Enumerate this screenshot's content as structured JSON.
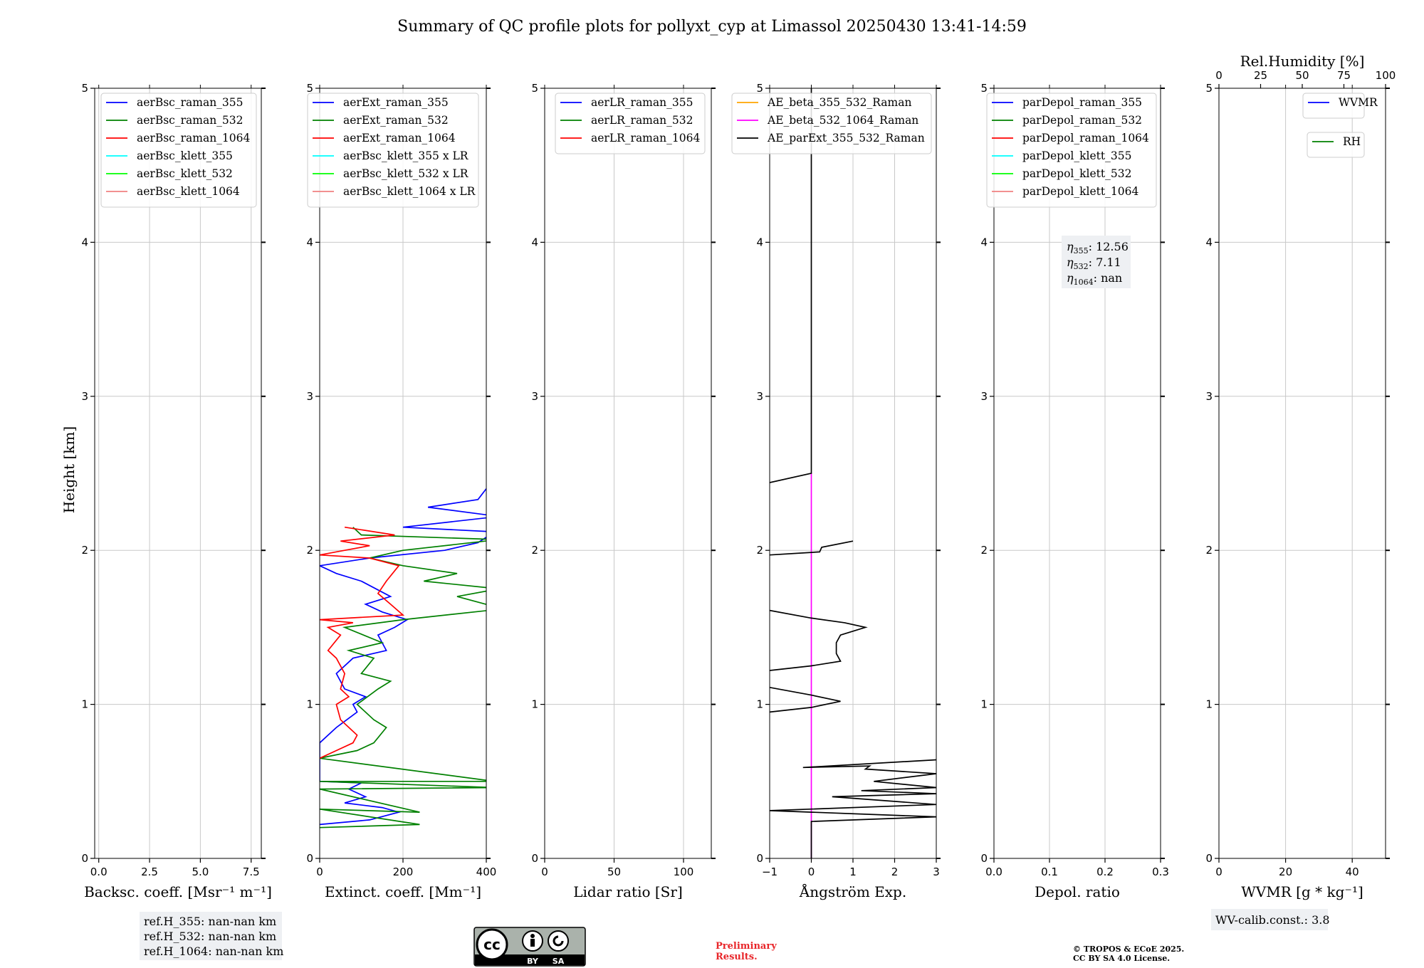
{
  "chart_data": {
    "title": "Summary of QC profile plots for pollyxt_cyp at Limassol 20250430 13:41-14:59",
    "ylabel": "Height [km]",
    "ylim": [
      0,
      5
    ],
    "yticks": [
      "0",
      "1",
      "2",
      "3",
      "4",
      "5"
    ],
    "panels": [
      {
        "id": "bsc",
        "type": "line",
        "xlabel": "Backsc. coeff. [Msr⁻¹ m⁻¹]",
        "xlim": [
          -0.2,
          8.0
        ],
        "xticks": [
          {
            "v": 0,
            "t": "0.0"
          },
          {
            "v": 2.5,
            "t": "2.5"
          },
          {
            "v": 5,
            "t": "5.0"
          },
          {
            "v": 7.5,
            "t": "7.5"
          }
        ],
        "legend": [
          {
            "label": "aerBsc_raman_355",
            "color": "#0000ff"
          },
          {
            "label": "aerBsc_raman_532",
            "color": "#008000"
          },
          {
            "label": "aerBsc_raman_1064",
            "color": "#ff0000"
          },
          {
            "label": "aerBsc_klett_355",
            "color": "#00ffff"
          },
          {
            "label": "aerBsc_klett_532",
            "color": "#00ff00"
          },
          {
            "label": "aerBsc_klett_1064",
            "color": "#f08080"
          }
        ],
        "series": []
      },
      {
        "id": "ext",
        "type": "line",
        "xlabel": "Extinct. coeff. [Mm⁻¹]",
        "xlim": [
          0,
          400
        ],
        "xticks": [
          {
            "v": 0,
            "t": "0"
          },
          {
            "v": 200,
            "t": "200"
          },
          {
            "v": 400,
            "t": "400"
          }
        ],
        "legend": [
          {
            "label": "aerExt_raman_355",
            "color": "#0000ff"
          },
          {
            "label": "aerExt_raman_532",
            "color": "#008000"
          },
          {
            "label": "aerExt_raman_1064",
            "color": "#ff0000"
          },
          {
            "label": "aerBsc_klett_355 x LR",
            "color": "#00ffff"
          },
          {
            "label": "aerBsc_klett_532 x LR",
            "color": "#00ff00"
          },
          {
            "label": "aerBsc_klett_1064 x LR",
            "color": "#f08080"
          }
        ],
        "series": [
          {
            "name": "aerExt_raman_355",
            "color": "#0000ff",
            "points": [
              [
                0,
                0.22
              ],
              [
                120,
                0.25
              ],
              [
                190,
                0.3
              ],
              [
                150,
                0.33
              ],
              [
                60,
                0.36
              ],
              [
                110,
                0.4
              ],
              [
                70,
                0.45
              ],
              [
                100,
                0.49
              ],
              [
                0,
                0.5
              ],
              [
                0,
                0.75
              ],
              [
                40,
                0.85
              ],
              [
                90,
                0.95
              ],
              [
                80,
                1.0
              ],
              [
                110,
                1.05
              ],
              [
                60,
                1.1
              ],
              [
                40,
                1.2
              ],
              [
                80,
                1.3
              ],
              [
                160,
                1.35
              ],
              [
                140,
                1.45
              ],
              [
                180,
                1.5
              ],
              [
                210,
                1.55
              ],
              [
                150,
                1.6
              ],
              [
                110,
                1.65
              ],
              [
                170,
                1.7
              ],
              [
                100,
                1.8
              ],
              [
                40,
                1.85
              ],
              [
                0,
                1.9
              ],
              [
                120,
                1.95
              ],
              [
                300,
                2.0
              ],
              [
                380,
                2.05
              ],
              [
                420,
                2.12
              ],
              [
                200,
                2.15
              ],
              [
                430,
                2.22
              ],
              [
                260,
                2.28
              ],
              [
                380,
                2.33
              ],
              [
                400,
                2.4
              ]
            ]
          },
          {
            "name": "aerExt_raman_532",
            "color": "#008000",
            "points": [
              [
                0,
                0.2
              ],
              [
                240,
                0.22
              ],
              [
                0,
                0.32
              ],
              [
                240,
                0.3
              ],
              [
                0,
                0.45
              ],
              [
                420,
                0.46
              ],
              [
                0,
                0.5
              ],
              [
                420,
                0.5
              ],
              [
                0,
                0.65
              ],
              [
                90,
                0.7
              ],
              [
                130,
                0.75
              ],
              [
                160,
                0.85
              ],
              [
                130,
                0.9
              ],
              [
                90,
                1.0
              ],
              [
                140,
                1.1
              ],
              [
                170,
                1.15
              ],
              [
                100,
                1.2
              ],
              [
                130,
                1.3
              ],
              [
                70,
                1.35
              ],
              [
                150,
                1.4
              ],
              [
                60,
                1.5
              ],
              [
                200,
                1.55
              ],
              [
                440,
                1.62
              ],
              [
                330,
                1.7
              ],
              [
                430,
                1.75
              ],
              [
                250,
                1.8
              ],
              [
                330,
                1.85
              ],
              [
                200,
                1.9
              ],
              [
                120,
                1.95
              ],
              [
                200,
                2.0
              ],
              [
                430,
                2.07
              ],
              [
                100,
                2.1
              ],
              [
                80,
                2.15
              ]
            ]
          },
          {
            "name": "aerExt_raman_1064",
            "color": "#ff0000",
            "points": [
              [
                0,
                0.65
              ],
              [
                40,
                0.7
              ],
              [
                80,
                0.75
              ],
              [
                90,
                0.8
              ],
              [
                50,
                0.9
              ],
              [
                40,
                1.0
              ],
              [
                70,
                1.05
              ],
              [
                50,
                1.1
              ],
              [
                60,
                1.2
              ],
              [
                40,
                1.3
              ],
              [
                20,
                1.35
              ],
              [
                50,
                1.45
              ],
              [
                20,
                1.5
              ],
              [
                80,
                1.53
              ],
              [
                0,
                1.55
              ],
              [
                200,
                1.58
              ],
              [
                170,
                1.65
              ],
              [
                140,
                1.72
              ],
              [
                160,
                1.8
              ],
              [
                190,
                1.9
              ],
              [
                120,
                1.95
              ],
              [
                0,
                1.97
              ],
              [
                60,
                2.0
              ],
              [
                120,
                2.03
              ],
              [
                50,
                2.06
              ],
              [
                180,
                2.1
              ],
              [
                60,
                2.15
              ]
            ]
          }
        ]
      },
      {
        "id": "lr",
        "type": "line",
        "xlabel": "Lidar ratio [Sr]",
        "xlim": [
          0,
          120
        ],
        "xticks": [
          {
            "v": 0,
            "t": "0"
          },
          {
            "v": 50,
            "t": "50"
          },
          {
            "v": 100,
            "t": "100"
          }
        ],
        "legend": [
          {
            "label": "aerLR_raman_355",
            "color": "#0000ff"
          },
          {
            "label": "aerLR_raman_532",
            "color": "#008000"
          },
          {
            "label": "aerLR_raman_1064",
            "color": "#ff0000"
          }
        ],
        "series": []
      },
      {
        "id": "ae",
        "type": "line",
        "xlabel": "Ångström Exp.",
        "xlim": [
          -1,
          3
        ],
        "xticks": [
          {
            "v": -1,
            "t": "−1"
          },
          {
            "v": 0,
            "t": "0"
          },
          {
            "v": 1,
            "t": "1"
          },
          {
            "v": 2,
            "t": "2"
          },
          {
            "v": 3,
            "t": "3"
          }
        ],
        "legend": [
          {
            "label": "AE_beta_355_532_Raman",
            "color": "#ffa500"
          },
          {
            "label": "AE_beta_532_1064_Raman",
            "color": "#ff00ff"
          },
          {
            "label": "AE_parExt_355_532_Raman",
            "color": "#000000"
          }
        ],
        "series": [
          {
            "name": "AE_beta_532_1064_Raman",
            "color": "#ff00ff",
            "points": [
              [
                0,
                0
              ],
              [
                0,
                2.5
              ]
            ]
          },
          {
            "name": "AE_parExt_355_532_Raman",
            "color": "#000000",
            "points": [
              [
                0,
                0
              ],
              [
                0,
                0.24
              ],
              [
                3,
                0.27
              ],
              [
                -1,
                0.31
              ],
              [
                3,
                0.35
              ],
              [
                0.5,
                0.4
              ],
              [
                3,
                0.42
              ],
              [
                1.2,
                0.44
              ],
              [
                3,
                0.46
              ],
              [
                1.5,
                0.5
              ],
              [
                3,
                0.55
              ],
              [
                1.3,
                0.58
              ],
              [
                1.4,
                0.6
              ],
              [
                -0.2,
                0.59
              ],
              [
                3,
                0.64
              ]
            ]
          },
          {
            "name": "AE_parExt_355_532_Raman_b",
            "color": "#000000",
            "points": [
              [
                -1,
                0.95
              ],
              [
                0,
                0.98
              ],
              [
                0.7,
                1.02
              ],
              [
                0,
                1.06
              ],
              [
                -1,
                1.11
              ]
            ]
          },
          {
            "name": "AE_parExt_355_532_Raman_c",
            "color": "#000000",
            "points": [
              [
                -1,
                1.22
              ],
              [
                0,
                1.25
              ],
              [
                0.7,
                1.28
              ],
              [
                0.6,
                1.33
              ],
              [
                0.6,
                1.4
              ],
              [
                0.7,
                1.45
              ],
              [
                1.3,
                1.5
              ],
              [
                0.8,
                1.53
              ],
              [
                0,
                1.56
              ],
              [
                -1,
                1.61
              ]
            ]
          },
          {
            "name": "AE_parExt_355_532_Raman_d",
            "color": "#000000",
            "points": [
              [
                -1,
                1.97
              ],
              [
                0.2,
                1.99
              ],
              [
                0.25,
                2.02
              ],
              [
                1.0,
                2.06
              ]
            ]
          },
          {
            "name": "AE_parExt_355_532_Raman_e",
            "color": "#000000",
            "points": [
              [
                -1,
                2.44
              ],
              [
                0,
                2.5
              ],
              [
                0,
                5
              ]
            ]
          }
        ]
      },
      {
        "id": "depol",
        "type": "line",
        "xlabel": "Depol. ratio",
        "xlim": [
          0,
          0.3
        ],
        "xticks": [
          {
            "v": 0,
            "t": "0.0"
          },
          {
            "v": 0.1,
            "t": "0.1"
          },
          {
            "v": 0.2,
            "t": "0.2"
          },
          {
            "v": 0.3,
            "t": "0.3"
          }
        ],
        "legend": [
          {
            "label": "parDepol_raman_355",
            "color": "#0000ff"
          },
          {
            "label": "parDepol_raman_532",
            "color": "#008000"
          },
          {
            "label": "parDepol_raman_1064",
            "color": "#ff0000"
          },
          {
            "label": "parDepol_klett_355",
            "color": "#00ffff"
          },
          {
            "label": "parDepol_klett_532",
            "color": "#00ff00"
          },
          {
            "label": "parDepol_klett_1064",
            "color": "#f08080"
          }
        ],
        "series": []
      },
      {
        "id": "wv",
        "type": "line",
        "xlabel": "WVMR",
        "xlabel_unit": "[g * kg⁻¹]",
        "xlim": [
          0,
          50
        ],
        "xticks": [
          {
            "v": 0,
            "t": "0"
          },
          {
            "v": 20,
            "t": "20"
          },
          {
            "v": 40,
            "t": "40"
          }
        ],
        "top_label": "Rel.Humidity [%]",
        "top_xlim": [
          0,
          100
        ],
        "top_xticks": [
          {
            "v": 0,
            "t": "0"
          },
          {
            "v": 25,
            "t": "25"
          },
          {
            "v": 50,
            "t": "50"
          },
          {
            "v": 75,
            "t": "75"
          },
          {
            "v": 100,
            "t": "100"
          }
        ],
        "legend": [
          {
            "label": "WVMR",
            "color": "#0000ff"
          }
        ],
        "legend2": [
          {
            "label": "RH",
            "color": "#008000"
          }
        ],
        "series": []
      }
    ]
  },
  "annotations": {
    "eta": [
      "12.56",
      "7.11",
      "nan"
    ],
    "refh": [
      "ref.H_355: nan-nan km",
      "ref.H_532: nan-nan km",
      "ref.H_1064: nan-nan km"
    ],
    "wv_calib": "WV-calib.const.: 3.8",
    "cc_badge": [
      "BY",
      "SA"
    ],
    "preliminary": [
      "Preliminary",
      "Results."
    ],
    "copyright": [
      "© TROPOS & ECoE 2025.",
      "CC BY SA 4.0 License."
    ]
  }
}
